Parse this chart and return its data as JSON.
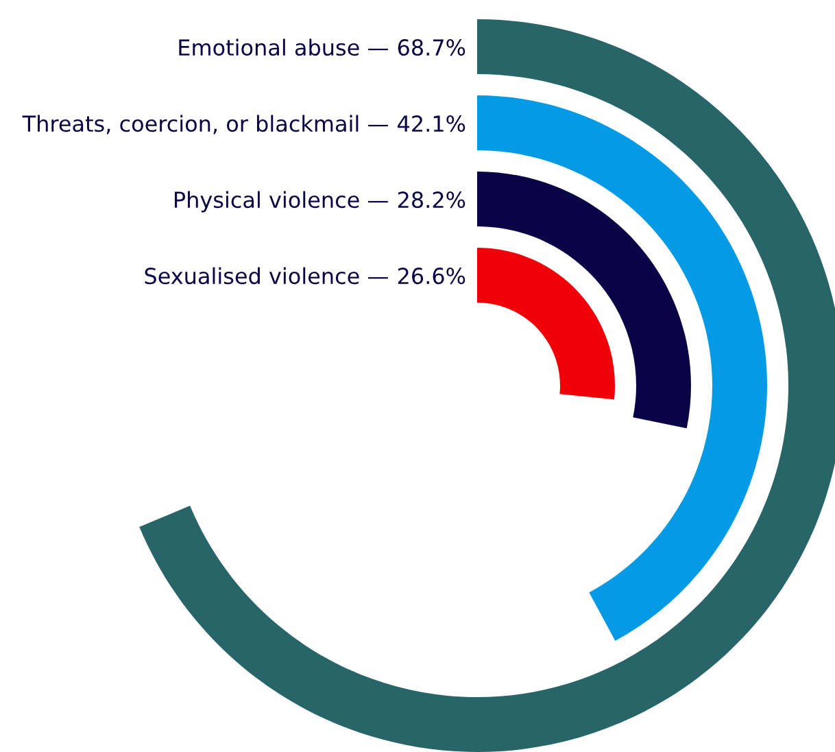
{
  "chart_data": {
    "type": "other",
    "categories": [
      "Emotional abuse —",
      "Threats, coercion, or blackmail —",
      "Physical violence —",
      "Sexualised violence —"
    ],
    "values": [
      68.7,
      42.1,
      28.2,
      26.6
    ],
    "value_labels": [
      "68.7%",
      "42.1%",
      "28.2%",
      "26.6%"
    ],
    "colors": [
      "#276569",
      "#049ae5",
      "#0a0446",
      "#f00008"
    ]
  }
}
